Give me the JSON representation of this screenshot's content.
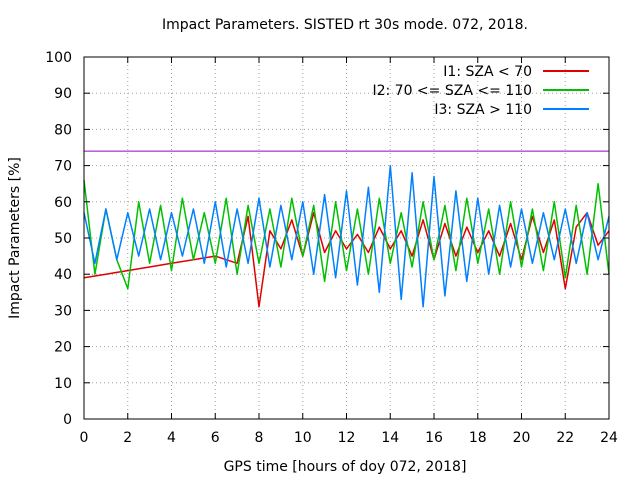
{
  "chart_data": {
    "type": "line",
    "title": "Impact Parameters. SISTED rt 30s mode. 072, 2018.",
    "xlabel": "GPS time [hours of doy 072, 2018]",
    "ylabel": "Impact Parameters [%]",
    "xlim": [
      0,
      24
    ],
    "ylim": [
      0,
      100
    ],
    "x_ticks": [
      0,
      2,
      4,
      6,
      8,
      10,
      12,
      14,
      16,
      18,
      20,
      22,
      24
    ],
    "y_ticks": [
      0,
      10,
      20,
      30,
      40,
      50,
      60,
      70,
      80,
      90,
      100
    ],
    "grid": true,
    "legend_position": "top-right",
    "reference_line": {
      "value": 74,
      "color": "#9400d3"
    },
    "series": [
      {
        "name": "I1: SZA < 70",
        "color": "#e00000",
        "x": [
          0,
          0.5,
          1,
          1.5,
          2,
          2.5,
          3,
          3.5,
          4,
          4.5,
          5,
          5.5,
          6,
          6.5,
          7,
          7.5,
          8,
          8.5,
          9,
          9.5,
          10,
          10.5,
          11,
          11.5,
          12,
          12.5,
          13,
          13.5,
          14,
          14.5,
          15,
          15.5,
          16,
          16.5,
          17,
          17.5,
          18,
          18.5,
          19,
          19.5,
          20,
          20.5,
          21,
          21.5,
          22,
          22.5,
          23,
          23.5,
          24
        ],
        "values": [
          39,
          39.5,
          40,
          40.5,
          41,
          41.5,
          42,
          42.5,
          43,
          43.5,
          44,
          44.5,
          45,
          44,
          43,
          56,
          31,
          52,
          47,
          55,
          45,
          57,
          46,
          52,
          47,
          51,
          46,
          53,
          47,
          52,
          45,
          55,
          44,
          54,
          45,
          53,
          46,
          52,
          45,
          54,
          44,
          56,
          46,
          55,
          36,
          53,
          57,
          48,
          52
        ]
      },
      {
        "name": "I2: 70 <= SZA <= 110",
        "color": "#00c000",
        "x": [
          0,
          0.5,
          1,
          1.5,
          2,
          2.5,
          3,
          3.5,
          4,
          4.5,
          5,
          5.5,
          6,
          6.5,
          7,
          7.5,
          8,
          8.5,
          9,
          9.5,
          10,
          10.5,
          11,
          11.5,
          12,
          12.5,
          13,
          13.5,
          14,
          14.5,
          15,
          15.5,
          16,
          16.5,
          17,
          17.5,
          18,
          18.5,
          19,
          19.5,
          20,
          20.5,
          21,
          21.5,
          22,
          22.5,
          23,
          23.5,
          24
        ],
        "values": [
          66,
          40,
          58,
          44,
          36,
          60,
          43,
          59,
          41,
          61,
          44,
          57,
          43,
          61,
          40,
          59,
          43,
          58,
          42,
          61,
          45,
          59,
          38,
          60,
          41,
          58,
          40,
          61,
          43,
          57,
          42,
          60,
          44,
          59,
          41,
          61,
          43,
          58,
          40,
          60,
          42,
          58,
          41,
          60,
          39,
          59,
          40,
          65,
          40
        ]
      },
      {
        "name": "I3: SZA > 110",
        "color": "#0080ff",
        "x": [
          0,
          0.5,
          1,
          1.5,
          2,
          2.5,
          3,
          3.5,
          4,
          4.5,
          5,
          5.5,
          6,
          6.5,
          7,
          7.5,
          8,
          8.5,
          9,
          9.5,
          10,
          10.5,
          11,
          11.5,
          12,
          12.5,
          13,
          13.5,
          14,
          14.5,
          15,
          15.5,
          16,
          16.5,
          17,
          17.5,
          18,
          18.5,
          19,
          19.5,
          20,
          20.5,
          21,
          21.5,
          22,
          22.5,
          23,
          23.5,
          24
        ],
        "values": [
          57,
          43,
          58,
          44,
          57,
          45,
          58,
          44,
          57,
          45,
          58,
          43,
          60,
          42,
          58,
          43,
          61,
          42,
          59,
          44,
          60,
          40,
          62,
          39,
          63,
          37,
          64,
          35,
          70,
          33,
          68,
          31,
          67,
          34,
          63,
          38,
          61,
          40,
          59,
          42,
          58,
          43,
          57,
          44,
          58,
          43,
          57,
          44,
          56
        ]
      }
    ]
  }
}
